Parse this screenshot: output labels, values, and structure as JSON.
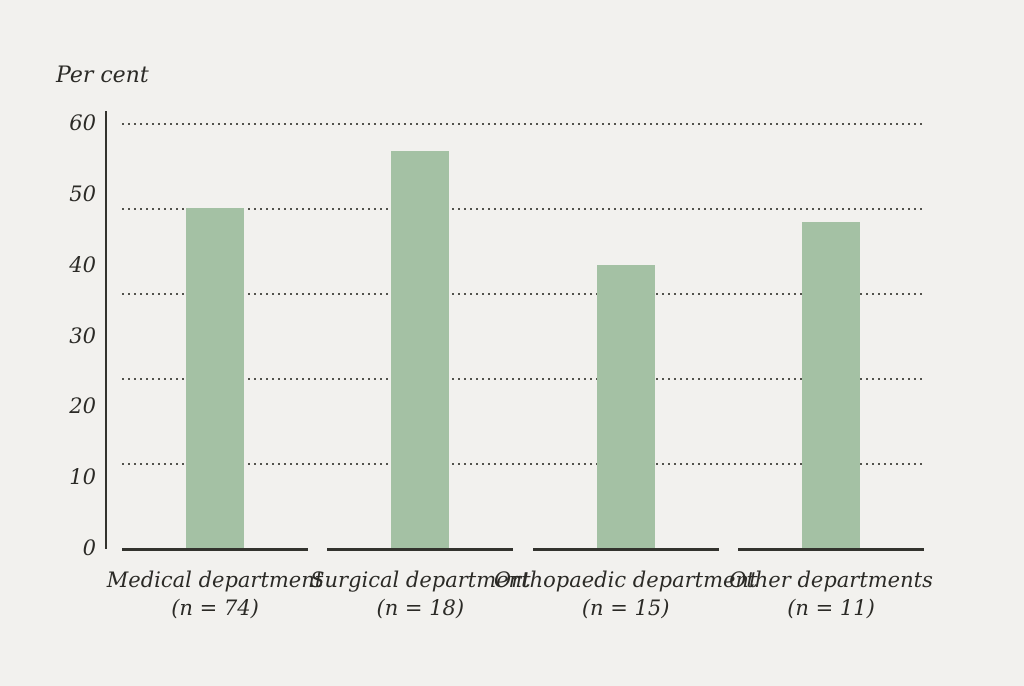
{
  "chart_data": {
    "type": "bar",
    "title": "",
    "ylabel": "Per cent",
    "xlabel": "",
    "categories": [
      "Medical department",
      "Surgical department",
      "Orthopaedic department",
      "Other departments"
    ],
    "category_counts": [
      "(n = 74)",
      "(n = 18)",
      "(n = 15)",
      "(n = 11)"
    ],
    "values": [
      48,
      56,
      40,
      46
    ],
    "ylim": [
      0,
      60
    ],
    "yticks": [
      0,
      10,
      20,
      30,
      40,
      50,
      60
    ],
    "gridlines": [
      12,
      24,
      36,
      48,
      60
    ],
    "grid_style": "dotted-horizontal",
    "legend": "none",
    "colors": {
      "bar": "#a4c1a4",
      "background": "#f2f1ee",
      "axis": "#33332e",
      "gridline": "#53534d",
      "text": "#2b2a26"
    }
  }
}
